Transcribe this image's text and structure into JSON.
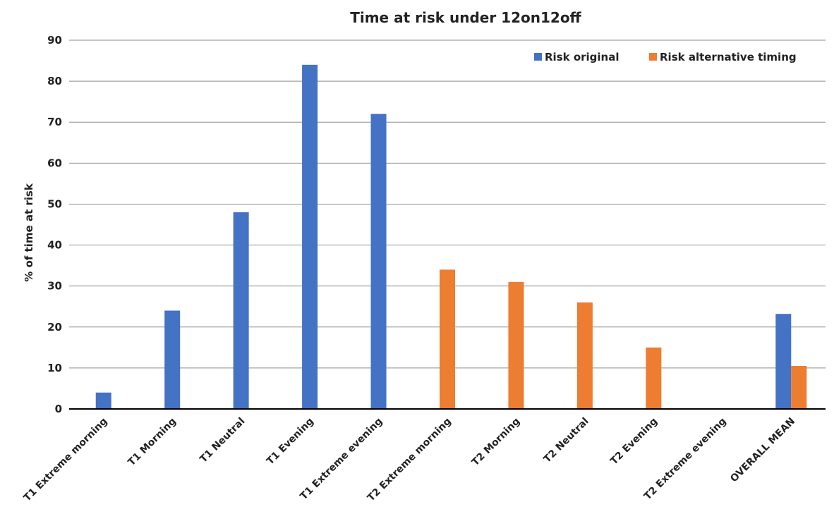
{
  "chart_data": {
    "type": "bar",
    "title": "Time at risk under 12on12off",
    "xlabel": "",
    "ylabel": "% of time at risk",
    "ylim": [
      0,
      90
    ],
    "yticks": [
      0,
      10,
      20,
      30,
      40,
      50,
      60,
      70,
      80,
      90
    ],
    "grid": true,
    "legend_position": "top-right",
    "categories": [
      "T1 Extreme morning",
      "T1 Morning",
      "T1 Neutral",
      "T1 Evening",
      "T1 Extreme evening",
      "T2 Extreme morning",
      "T2 Morning",
      "T2 Neutral",
      "T2 Evening",
      "T2 Extreme evening",
      "OVERALL MEAN"
    ],
    "series": [
      {
        "name": "Risk original",
        "color": "#4472C4",
        "values": [
          4,
          24,
          48,
          84,
          72,
          null,
          null,
          null,
          null,
          null,
          23.2
        ]
      },
      {
        "name": "Risk alternative timing",
        "color": "#ED7D31",
        "values": [
          null,
          null,
          null,
          null,
          null,
          34,
          31,
          26,
          15,
          null,
          10.5
        ]
      }
    ]
  }
}
